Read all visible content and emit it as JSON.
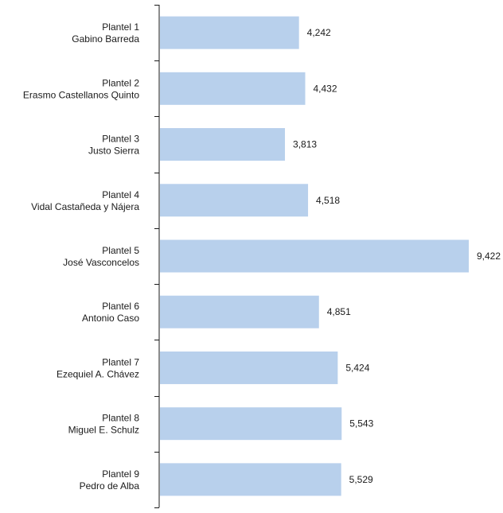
{
  "chart_data": {
    "type": "bar",
    "orientation": "horizontal",
    "categories": [
      [
        "Plantel 1",
        "Gabino Barreda"
      ],
      [
        "Plantel 2",
        "Erasmo Castellanos Quinto"
      ],
      [
        "Plantel 3",
        "Justo Sierra"
      ],
      [
        "Plantel 4",
        "Vidal Castañeda y Nájera"
      ],
      [
        "Plantel 5",
        "José Vasconcelos"
      ],
      [
        "Plantel 6",
        "Antonio Caso"
      ],
      [
        "Plantel 7",
        "Ezequiel A. Chávez"
      ],
      [
        "Plantel 8",
        "Miguel E. Schulz"
      ],
      [
        "Plantel 9",
        "Pedro de Alba"
      ]
    ],
    "values": [
      4242,
      4432,
      3813,
      4518,
      9422,
      4851,
      5424,
      5543,
      5529
    ],
    "value_labels": [
      "4,242",
      "4,432",
      "3,813",
      "4,518",
      "9,422",
      "4,851",
      "5,424",
      "5,543",
      "5,529"
    ],
    "bar_color": "#b8d0ec",
    "axis_color": "#1a1a1a",
    "xlim": [
      0,
      9422
    ],
    "grid": false,
    "legend": "none"
  }
}
